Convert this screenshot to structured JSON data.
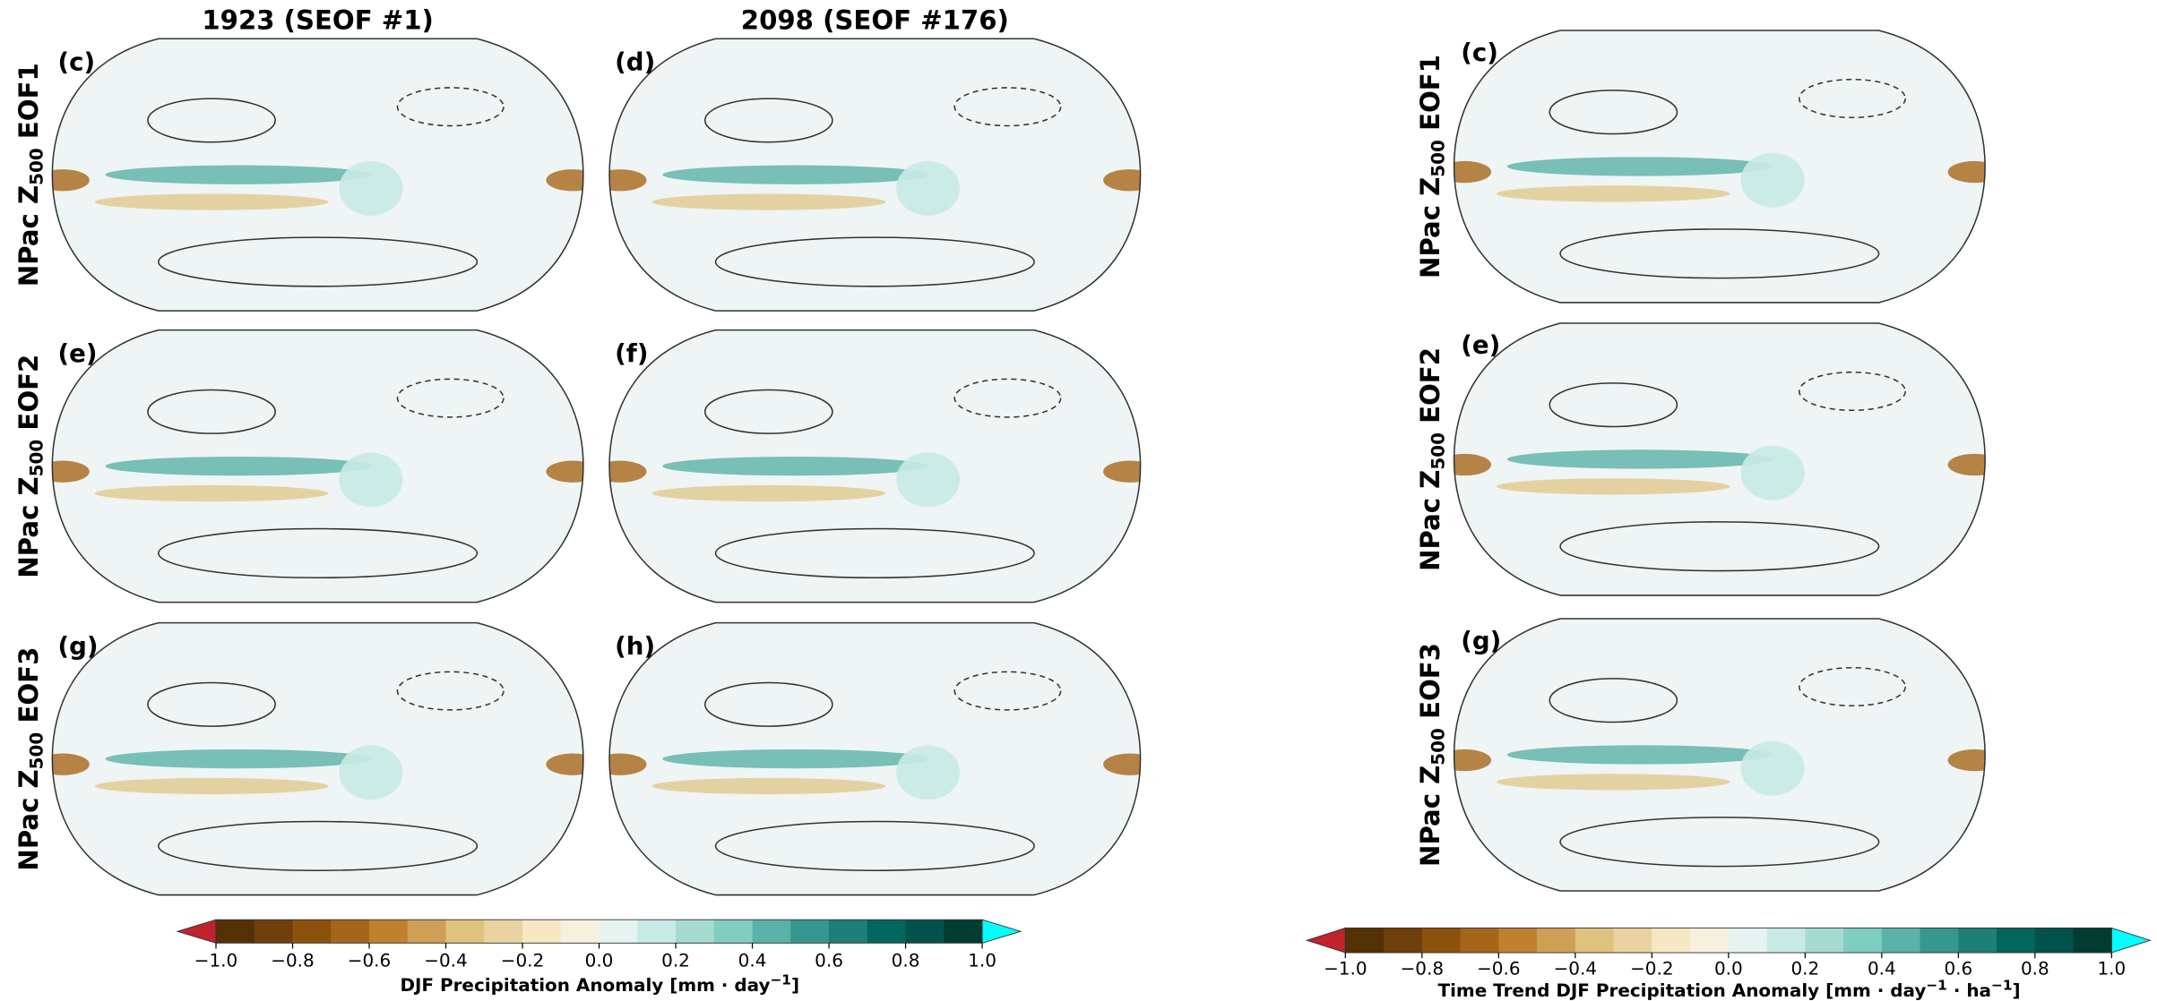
{
  "left": {
    "column_titles": [
      "1923 (SEOF #1)",
      "2098 (SEOF #176)"
    ],
    "panel_labels": [
      [
        "(c)",
        "(d)"
      ],
      [
        "(e)",
        "(f)"
      ],
      [
        "(g)",
        "(h)"
      ]
    ],
    "row_labels": [
      {
        "prefix": "NPac Z",
        "subscript": "500",
        "suffix": " EOF1"
      },
      {
        "prefix": "NPac Z",
        "subscript": "500",
        "suffix": " EOF2"
      },
      {
        "prefix": "NPac Z",
        "subscript": "500",
        "suffix": " EOF3"
      }
    ],
    "colorbar": {
      "lim": [
        -1,
        1
      ],
      "ticks": [
        {
          "value": -1,
          "label": "−1.0"
        },
        {
          "value": -0.8,
          "label": "−0.8"
        },
        {
          "value": -0.6,
          "label": "−0.6"
        },
        {
          "value": -0.4,
          "label": "−0.4"
        },
        {
          "value": -0.2,
          "label": "−0.2"
        },
        {
          "value": 0,
          "label": "0.0"
        },
        {
          "value": 0.2,
          "label": "0.2"
        },
        {
          "value": 0.4,
          "label": "0.4"
        },
        {
          "value": 0.6,
          "label": "0.6"
        },
        {
          "value": 0.8,
          "label": "0.8"
        },
        {
          "value": 1,
          "label": "1.0"
        }
      ],
      "colors": [
        "#543005",
        "#6e3f0a",
        "#8c510a",
        "#a6661a",
        "#bf812d",
        "#cf9f55",
        "#dfc27d",
        "#ead3a0",
        "#f6e8c3",
        "#f8f0de",
        "#e6f3f1",
        "#c7eae5",
        "#a6dbd2",
        "#80cdc1",
        "#5ab2a8",
        "#35978f",
        "#1d7f77",
        "#01665e",
        "#01524a",
        "#003c30"
      ],
      "under_color": "#c0232b",
      "over_color": "#00ffff",
      "label": [
        {
          "text": "DJF Precipitation Anomaly [mm · day",
          "sup": false
        },
        {
          "text": "−1",
          "sup": true
        },
        {
          "text": "]",
          "sup": false
        }
      ]
    }
  },
  "right": {
    "panel_labels": [
      "(c)",
      "(e)",
      "(g)"
    ],
    "row_labels": [
      {
        "prefix": "NPac Z",
        "subscript": "500",
        "suffix": " EOF1"
      },
      {
        "prefix": "NPac Z",
        "subscript": "500",
        "suffix": " EOF2"
      },
      {
        "prefix": "NPac Z",
        "subscript": "500",
        "suffix": " EOF3"
      }
    ],
    "colorbar": {
      "lim": [
        -1,
        1
      ],
      "ticks": [
        {
          "value": -1,
          "label": "−1.0"
        },
        {
          "value": -0.8,
          "label": "−0.8"
        },
        {
          "value": -0.6,
          "label": "−0.6"
        },
        {
          "value": -0.4,
          "label": "−0.4"
        },
        {
          "value": -0.2,
          "label": "−0.2"
        },
        {
          "value": 0,
          "label": "0.0"
        },
        {
          "value": 0.2,
          "label": "0.2"
        },
        {
          "value": 0.4,
          "label": "0.4"
        },
        {
          "value": 0.6,
          "label": "0.6"
        },
        {
          "value": 0.8,
          "label": "0.8"
        },
        {
          "value": 1,
          "label": "1.0"
        }
      ],
      "colors": [
        "#543005",
        "#6e3f0a",
        "#8c510a",
        "#a6661a",
        "#bf812d",
        "#cf9f55",
        "#dfc27d",
        "#ead3a0",
        "#f6e8c3",
        "#f8f0de",
        "#e6f3f1",
        "#c7eae5",
        "#a6dbd2",
        "#80cdc1",
        "#5ab2a8",
        "#35978f",
        "#1d7f77",
        "#01665e",
        "#01524a",
        "#003c30"
      ],
      "under_color": "#c0232b",
      "over_color": "#00ffff",
      "label": [
        {
          "text": "Time Trend DJF Precipitation Anomaly [mm · day",
          "sup": false
        },
        {
          "text": "−1",
          "sup": true
        },
        {
          "text": " · ha",
          "sup": false
        },
        {
          "text": "−1",
          "sup": true
        },
        {
          "text": "]",
          "sup": false
        }
      ]
    }
  }
}
